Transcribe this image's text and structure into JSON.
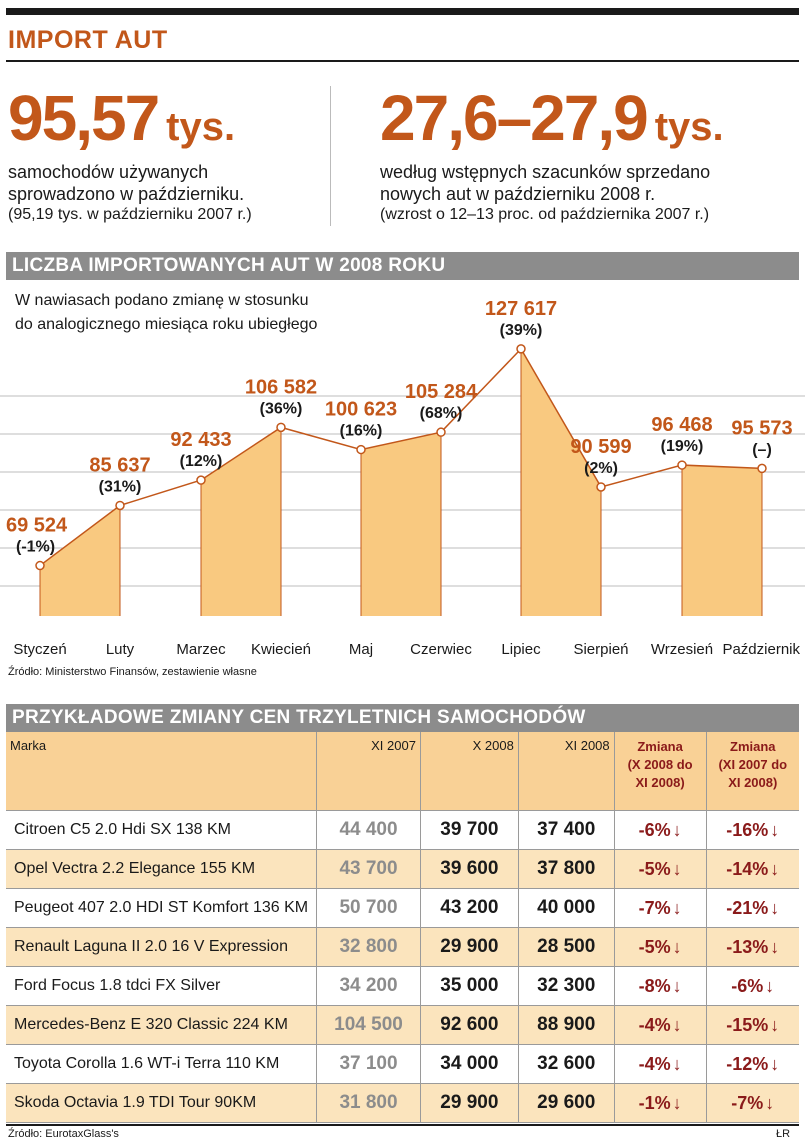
{
  "header": {
    "title": "IMPORT AUT"
  },
  "stats": {
    "left": {
      "big_number": "95,57",
      "unit": "tys.",
      "line1": "samochodów używanych",
      "line2": "sprowadzono w październiku.",
      "line3": "(95,19 tys. w październiku 2007 r.)"
    },
    "right": {
      "big_number": "27,6–27,9",
      "unit": "tys.",
      "line1": "według wstępnych szacunków sprzedano",
      "line2": "nowych aut w październiku 2008 r.",
      "line3": "(wzrost o 12–13 proc. od października 2007 r.)"
    }
  },
  "chart_section": {
    "title": "LICZBA IMPORTOWANYCH AUT W 2008 ROKU",
    "note_line1": "W nawiasach podano zmianę w stosunku",
    "note_line2": "do analogicznego miesiąca roku ubiegłego",
    "source": "Źródło: Ministerstwo Finansów, zestawienie własne"
  },
  "chart_data": {
    "type": "area",
    "title": "LICZBA IMPORTOWANYCH AUT W 2008 ROKU",
    "categories": [
      "Styczeń",
      "Luty",
      "Marzec",
      "Kwiecień",
      "Maj",
      "Czerwiec",
      "Lipiec",
      "Sierpień",
      "Wrzesień",
      "Październik"
    ],
    "values": [
      69524,
      85637,
      92433,
      106582,
      100623,
      105284,
      127617,
      90599,
      96468,
      95573
    ],
    "value_labels": [
      "69 524",
      "85 637",
      "92 433",
      "106 582",
      "100 623",
      "105 284",
      "127 617",
      "90 599",
      "96 468",
      "95 573"
    ],
    "change_labels": [
      "(-1%)",
      "(31%)",
      "(12%)",
      "(36%)",
      "(16%)",
      "(68%)",
      "(39%)",
      "(2%)",
      "(19%)",
      "(–)"
    ],
    "xlabel": "",
    "ylabel": "",
    "ylim": [
      56000,
      130000
    ],
    "grid": true,
    "colors": {
      "fill": "#f9c980",
      "line": "#c2571a",
      "label": "#c2571a",
      "grid": "#bdbdbd"
    }
  },
  "table_section": {
    "title": "PRZYKŁADOWE ZMIANY CEN TRZYLETNICH SAMOCHODÓW",
    "headers": {
      "marka": "Marka",
      "xi2007": "XI 2007",
      "x2008": "X 2008",
      "xi2008": "XI 2008",
      "zm1_l1": "Zmiana",
      "zm1_l2": "(X 2008 do",
      "zm1_l3": "XI 2008)",
      "zm2_l1": "Zmiana",
      "zm2_l2": "(XI 2007 do",
      "zm2_l3": "XI 2008)"
    },
    "arrow_icon": "arrow-down-icon",
    "rows": [
      {
        "model": "Citroen C5 2.0 Hdi SX 138 KM",
        "xi2007": "44 400",
        "x2008": "39 700",
        "xi2008": "37 400",
        "zm1": "-6%",
        "zm2": "-16%"
      },
      {
        "model": "Opel Vectra 2.2 Elegance 155 KM",
        "xi2007": "43 700",
        "x2008": "39 600",
        "xi2008": "37 800",
        "zm1": "-5%",
        "zm2": "-14%"
      },
      {
        "model": "Peugeot 407 2.0 HDI ST Komfort 136 KM",
        "xi2007": "50 700",
        "x2008": "43 200",
        "xi2008": "40 000",
        "zm1": "-7%",
        "zm2": "-21%"
      },
      {
        "model": "Renault Laguna II 2.0 16 V Expression",
        "xi2007": "32 800",
        "x2008": "29 900",
        "xi2008": "28 500",
        "zm1": "-5%",
        "zm2": "-13%"
      },
      {
        "model": "Ford Focus 1.8 tdci FX Silver",
        "xi2007": "34 200",
        "x2008": "35 000",
        "xi2008": "32 300",
        "zm1": "-8%",
        "zm2": "-6%"
      },
      {
        "model": "Mercedes-Benz E 320 Classic 224 KM",
        "xi2007": "104 500",
        "x2008": "92 600",
        "xi2008": "88 900",
        "zm1": "-4%",
        "zm2": "-15%"
      },
      {
        "model": "Toyota Corolla 1.6 WT-i Terra 110 KM",
        "xi2007": "37 100",
        "x2008": "34 000",
        "xi2008": "32 600",
        "zm1": "-4%",
        "zm2": "-12%"
      },
      {
        "model": "Skoda Octavia 1.9 TDI Tour 90KM",
        "xi2007": "31 800",
        "x2008": "29 900",
        "xi2008": "29 600",
        "zm1": "-1%",
        "zm2": "-7%"
      }
    ],
    "source": "Źródło: EurotaxGlass's",
    "author": "ŁR"
  }
}
